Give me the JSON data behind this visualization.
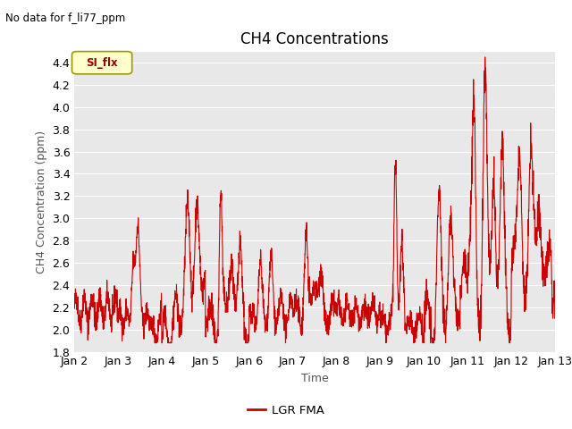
{
  "title": "CH4 Concentrations",
  "xlabel": "Time",
  "ylabel": "CH4 Concentration (ppm)",
  "no_data_label": "No data for f_li77_ppm",
  "legend_label": "LGR FMA",
  "legend_color": "#cc0000",
  "si_flx_label": "SI_flx",
  "si_flx_bg": "#ffffcc",
  "si_flx_border": "#999900",
  "si_flx_text_color": "#990000",
  "ylim": [
    1.8,
    4.5
  ],
  "yticks": [
    1.8,
    2.0,
    2.2,
    2.4,
    2.6,
    2.8,
    3.0,
    3.2,
    3.4,
    3.6,
    3.8,
    4.0,
    4.2,
    4.4
  ],
  "line_color": "#cc0000",
  "bg_color": "#e8e8e8",
  "grid_color": "#ffffff",
  "x_tick_labels": [
    "Jan 2",
    "Jan 3",
    "Jan 4",
    "Jan 5",
    "Jan 6",
    "Jan 7",
    "Jan 8",
    "Jan 9",
    "Jan 10",
    "Jan 11",
    "Jan 12",
    "Jan 13"
  ],
  "title_fontsize": 12,
  "axis_label_fontsize": 9,
  "tick_fontsize": 9
}
